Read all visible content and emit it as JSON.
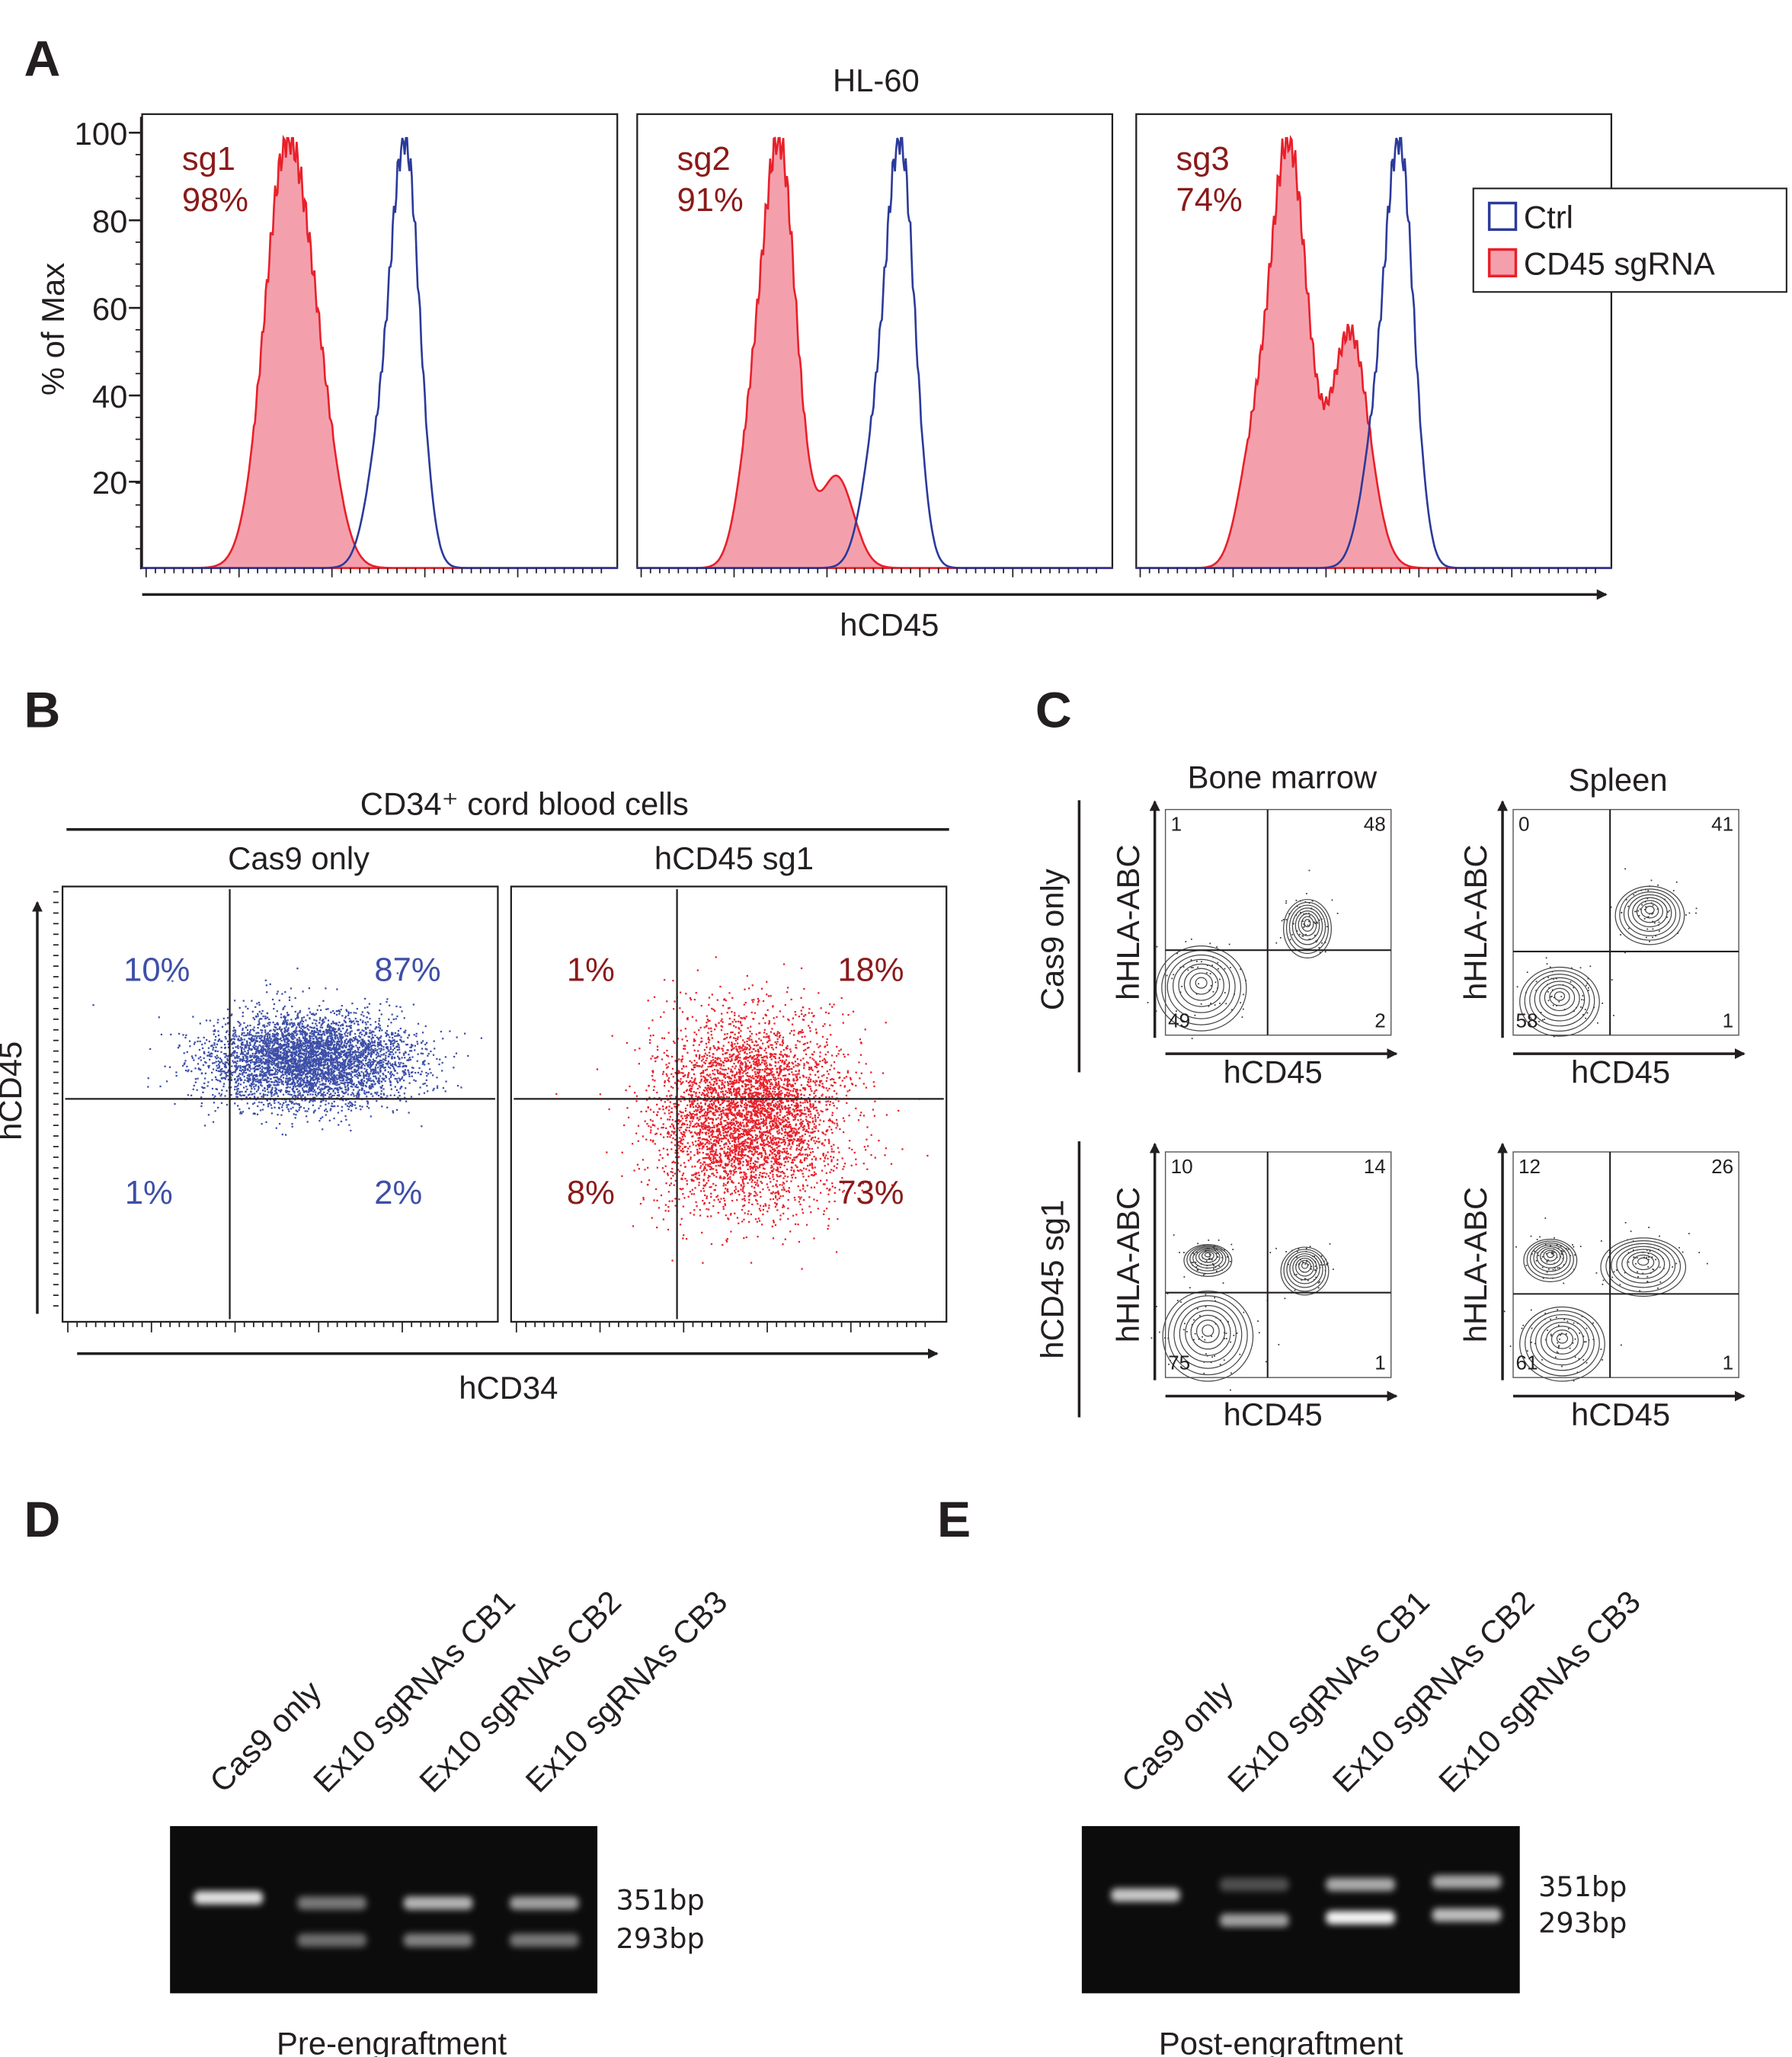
{
  "panels": {
    "A": {
      "letter": "A",
      "title": "HL-60",
      "ylabel": "% of Max",
      "xlabel": "hCD45",
      "yticks": [
        "100",
        "80",
        "60",
        "40",
        "20"
      ],
      "subplots": [
        {
          "name": "sg1",
          "percent": "98%"
        },
        {
          "name": "sg2",
          "percent": "91%"
        },
        {
          "name": "sg3",
          "percent": "74%"
        }
      ],
      "legend": [
        {
          "label": "Ctrl",
          "color": "#2b3a9a",
          "filled": false
        },
        {
          "label": "CD45 sgRNA",
          "color": "#e8202a",
          "fill": "#f4a0ac",
          "filled": true
        }
      ]
    },
    "B": {
      "letter": "B",
      "title": "CD34⁺ cord blood cells",
      "ylabel": "hCD45",
      "xlabel": "hCD34",
      "plots": [
        {
          "title": "Cas9 only",
          "color": "#3d4fa8",
          "quadrants": {
            "ul": "10%",
            "ur": "87%",
            "ll": "1%",
            "lr": "2%"
          }
        },
        {
          "title": "hCD45 sg1",
          "color": "#e8202a",
          "label_color": "#8b1a1a",
          "quadrants": {
            "ul": "1%",
            "ur": "18%",
            "ll": "8%",
            "lr": "73%"
          }
        }
      ]
    },
    "C": {
      "letter": "C",
      "columns": [
        "Bone marrow",
        "Spleen"
      ],
      "rows": [
        "Cas9 only",
        "hCD45 sg1"
      ],
      "ylabel": "hHLA-ABC",
      "xlabel": "hCD45",
      "plots": [
        {
          "row": 0,
          "col": 0,
          "quadrants": {
            "ul": "1",
            "ur": "48",
            "ll": "49",
            "lr": "2"
          }
        },
        {
          "row": 0,
          "col": 1,
          "quadrants": {
            "ul": "0",
            "ur": "41",
            "ll": "58",
            "lr": "1"
          }
        },
        {
          "row": 1,
          "col": 0,
          "quadrants": {
            "ul": "10",
            "ur": "14",
            "ll": "75",
            "lr": "1"
          }
        },
        {
          "row": 1,
          "col": 1,
          "quadrants": {
            "ul": "12",
            "ur": "26",
            "ll": "61",
            "lr": "1"
          }
        }
      ]
    },
    "D": {
      "letter": "D",
      "lanes": [
        "Cas9 only",
        "Ex10 sgRNAs CB1",
        "Ex10 sgRNAs CB2",
        "Ex10 sgRNAs CB3"
      ],
      "bands": [
        "351bp",
        "293bp"
      ],
      "caption": "Pre-engraftment"
    },
    "E": {
      "letter": "E",
      "lanes": [
        "Cas9 only",
        "Ex10 sgRNAs CB1",
        "Ex10 sgRNAs CB2",
        "Ex10 sgRNAs CB3"
      ],
      "bands": [
        "351bp",
        "293bp"
      ],
      "caption": "Post-engraftment"
    }
  }
}
